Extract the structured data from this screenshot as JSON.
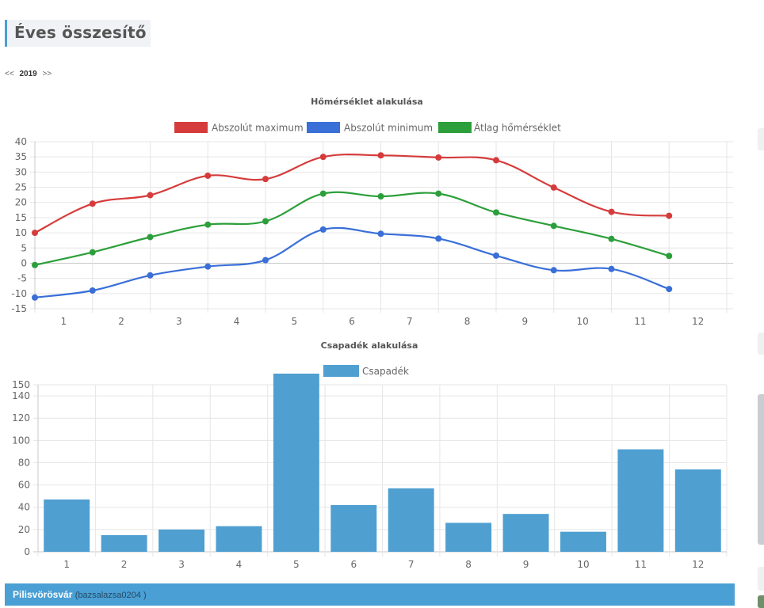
{
  "page": {
    "title": "Éves összesítő"
  },
  "year_nav": {
    "prev": "<<",
    "year": "2019",
    "next": ">>"
  },
  "chart_data": [
    {
      "type": "line",
      "title": "Hőmérséklet alakulása",
      "categories": [
        "1",
        "2",
        "3",
        "4",
        "5",
        "6",
        "7",
        "8",
        "9",
        "10",
        "11",
        "12"
      ],
      "series": [
        {
          "name": "Abszolút maximum",
          "color": "#d63b3b",
          "values": [
            10,
            19.6,
            22.4,
            28.8,
            27.7,
            35,
            35.5,
            34.8,
            33.9,
            24.9,
            16.9,
            15.6
          ]
        },
        {
          "name": "Abszolút minimum",
          "color": "#3a6fd8",
          "values": [
            -11.3,
            -9,
            -4,
            -1.1,
            1,
            11.1,
            9.7,
            8.1,
            2.5,
            -2.3,
            -1.9,
            -8.5
          ]
        },
        {
          "name": "Átlag hőmérséklet",
          "color": "#2c9f3a",
          "values": [
            -0.6,
            3.6,
            8.6,
            12.7,
            13.8,
            22.9,
            22,
            22.9,
            16.7,
            12.3,
            8,
            2.4
          ]
        }
      ],
      "yticks": [
        40,
        35,
        30,
        25,
        20,
        15,
        10,
        5,
        0,
        -5,
        -10,
        -15
      ],
      "ylim": [
        -15,
        40
      ]
    },
    {
      "type": "bar",
      "title": "Csapadék alakulása",
      "categories": [
        "1",
        "2",
        "3",
        "4",
        "5",
        "6",
        "7",
        "8",
        "9",
        "10",
        "11",
        "12"
      ],
      "series": [
        {
          "name": "Csapadék",
          "color": "#4f9fd1",
          "values": [
            47,
            15,
            20,
            23,
            160,
            42,
            57,
            26,
            34,
            18,
            92,
            74
          ]
        }
      ],
      "yticks": [
        150,
        140,
        120,
        100,
        80,
        60,
        40,
        20,
        0
      ],
      "ylim": [
        0,
        150
      ]
    }
  ],
  "station": {
    "name": "Pilisvörösvár",
    "user": "(bazsalazsa0204 )"
  }
}
